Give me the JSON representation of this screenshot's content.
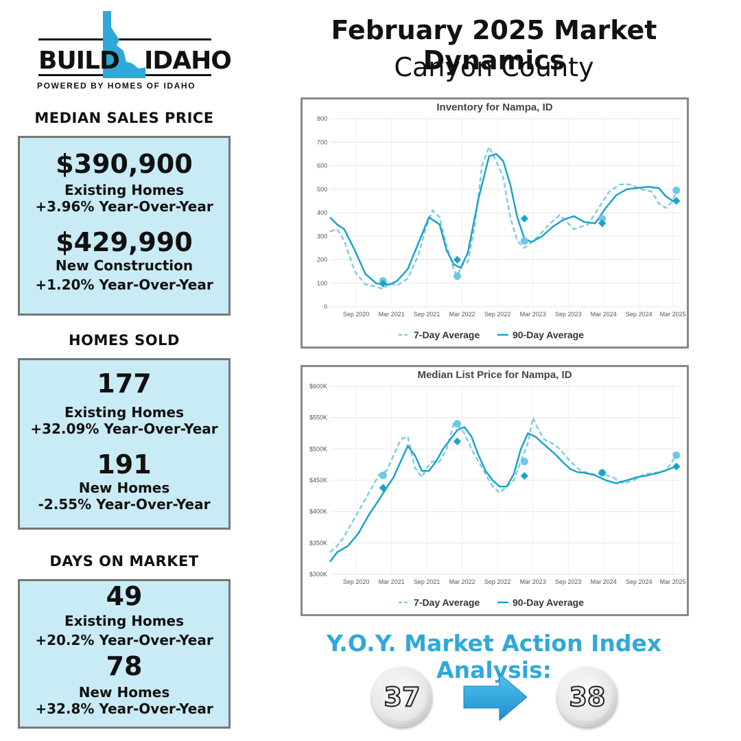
{
  "logo": {
    "left": "BUILD",
    "right": "IDAHO",
    "tagline": "POWERED BY HOMES OF IDAHO"
  },
  "title": "February 2025 Market Dynamics",
  "subtitle": "Canyon County",
  "median_sales_price": {
    "heading": "MEDIAN SALES PRICE",
    "existing_value": "$390,900",
    "existing_label": "Existing Homes",
    "existing_change": "+3.96% Year-Over-Year",
    "new_value": "$429,990",
    "new_label": "New Construction",
    "new_change": "+1.20% Year-Over-Year"
  },
  "homes_sold": {
    "heading": "HOMES SOLD",
    "existing_value": "177",
    "existing_label": "Existing Homes",
    "existing_change": "+32.09% Year-Over-Year",
    "new_value": "191",
    "new_label": "New Homes",
    "new_change": "-2.55% Year-Over-Year"
  },
  "days_on_market": {
    "heading": "DAYS ON MARKET",
    "existing_value": "49",
    "existing_label": "Existing Homes",
    "existing_change": "+20.2% Year-Over-Year",
    "new_value": "78",
    "new_label": "New Homes",
    "new_change": "+32.8% Year-Over-Year"
  },
  "market_action": {
    "title": "Y.O.Y. Market Action Index Analysis:",
    "from": "37",
    "to": "38"
  },
  "colors": {
    "box": "#c9ebf5",
    "accent": "#2fa9d8",
    "line7": "#7fcde3",
    "line90": "#1aa3c8"
  },
  "chart_data": [
    {
      "type": "line",
      "title": "Inventory for Nampa, ID",
      "xticks": [
        "Sep 2020",
        "Mar 2021",
        "Sep 2021",
        "Mar 2022",
        "Sep 2022",
        "Mar 2023",
        "Sep 2023",
        "Mar 2024",
        "Sep 2024",
        "Mar 2025"
      ],
      "ylim": [
        0,
        800
      ],
      "yticks": [
        "0",
        "100",
        "200",
        "300",
        "400",
        "500",
        "600",
        "700",
        "800"
      ],
      "x_range": [
        2020.25,
        2025.2
      ],
      "series": [
        {
          "name": "7-Day Average",
          "x": [
            2020.25,
            2020.35,
            2020.45,
            2020.6,
            2020.75,
            2020.9,
            2021.0,
            2021.1,
            2021.2,
            2021.35,
            2021.5,
            2021.6,
            2021.7,
            2021.8,
            2021.9,
            2022.0,
            2022.05,
            2022.12,
            2022.2,
            2022.3,
            2022.4,
            2022.5,
            2022.6,
            2022.7,
            2022.8,
            2022.9,
            2023.0,
            2023.05,
            2023.12,
            2023.2,
            2023.35,
            2023.5,
            2023.7,
            2023.9,
            2024.05,
            2024.2,
            2024.35,
            2024.5,
            2024.65,
            2024.8,
            2024.9,
            2025.0,
            2025.1,
            2025.15
          ],
          "y": [
            320,
            330,
            280,
            150,
            95,
            85,
            75,
            100,
            90,
            120,
            220,
            330,
            410,
            380,
            260,
            160,
            130,
            180,
            190,
            350,
            600,
            680,
            620,
            550,
            380,
            280,
            250,
            260,
            280,
            300,
            350,
            390,
            330,
            350,
            420,
            490,
            520,
            520,
            500,
            490,
            440,
            420,
            450,
            495
          ]
        },
        {
          "name": "90-Day Average",
          "x": [
            2020.25,
            2020.35,
            2020.45,
            2020.6,
            2020.75,
            2020.9,
            2021.0,
            2021.1,
            2021.2,
            2021.35,
            2021.5,
            2021.65,
            2021.8,
            2021.9,
            2022.0,
            2022.1,
            2022.2,
            2022.35,
            2022.5,
            2022.6,
            2022.7,
            2022.8,
            2022.9,
            2023.0,
            2023.1,
            2023.25,
            2023.4,
            2023.55,
            2023.7,
            2023.85,
            2024.0,
            2024.15,
            2024.3,
            2024.45,
            2024.6,
            2024.75,
            2024.9,
            2025.0,
            2025.1,
            2025.15
          ],
          "y": [
            380,
            350,
            330,
            240,
            140,
            100,
            95,
            95,
            110,
            160,
            270,
            380,
            350,
            240,
            180,
            165,
            230,
            460,
            640,
            650,
            620,
            520,
            380,
            290,
            275,
            300,
            340,
            370,
            385,
            360,
            355,
            420,
            475,
            500,
            505,
            510,
            505,
            470,
            450,
            450
          ]
        }
      ],
      "markers": {
        "7-Day Average": [
          [
            2021.0,
            110
          ],
          [
            2022.05,
            130
          ],
          [
            2023.0,
            280
          ],
          [
            2024.1,
            375
          ],
          [
            2025.15,
            495
          ]
        ],
        "90-Day Average": [
          [
            2021.0,
            98
          ],
          [
            2022.05,
            200
          ],
          [
            2023.0,
            375
          ],
          [
            2024.1,
            355
          ],
          [
            2025.15,
            450
          ]
        ]
      }
    },
    {
      "type": "line",
      "title": "Median List Price for Nampa, ID",
      "xticks": [
        "Sep 2020",
        "Mar 2021",
        "Sep 2021",
        "Mar 2022",
        "Sep 2022",
        "Mar 2023",
        "Sep 2023",
        "Mar 2024",
        "Sep 2024",
        "Mar 2025"
      ],
      "ylim": [
        300,
        600
      ],
      "yticks": [
        "$300K",
        "$350K",
        "$400K",
        "$450K",
        "$500K",
        "$550K",
        "$600K"
      ],
      "x_range": [
        2020.25,
        2025.2
      ],
      "series": [
        {
          "name": "7-Day Average",
          "x": [
            2020.25,
            2020.35,
            2020.45,
            2020.55,
            2020.65,
            2020.75,
            2020.85,
            2020.95,
            2021.05,
            2021.15,
            2021.25,
            2021.35,
            2021.45,
            2021.55,
            2021.62,
            2021.7,
            2021.8,
            2021.9,
            2022.0,
            2022.08,
            2022.15,
            2022.25,
            2022.35,
            2022.45,
            2022.55,
            2022.65,
            2022.75,
            2022.85,
            2022.95,
            2023.05,
            2023.12,
            2023.2,
            2023.28,
            2023.38,
            2023.5,
            2023.65,
            2023.8,
            2023.95,
            2024.1,
            2024.25,
            2024.4,
            2024.55,
            2024.7,
            2024.85,
            2025.0,
            2025.15
          ],
          "y": [
            335,
            345,
            360,
            380,
            400,
            420,
            440,
            460,
            465,
            490,
            515,
            520,
            470,
            455,
            470,
            480,
            480,
            500,
            540,
            535,
            525,
            500,
            480,
            460,
            440,
            430,
            440,
            450,
            480,
            510,
            550,
            530,
            515,
            510,
            500,
            480,
            465,
            460,
            460,
            455,
            445,
            450,
            460,
            462,
            465,
            490
          ]
        },
        {
          "name": "90-Day Average",
          "x": [
            2020.25,
            2020.35,
            2020.5,
            2020.65,
            2020.8,
            2020.95,
            2021.05,
            2021.15,
            2021.25,
            2021.35,
            2021.45,
            2021.55,
            2021.65,
            2021.75,
            2021.85,
            2021.95,
            2022.05,
            2022.15,
            2022.25,
            2022.35,
            2022.45,
            2022.55,
            2022.65,
            2022.75,
            2022.85,
            2022.95,
            2023.05,
            2023.15,
            2023.25,
            2023.35,
            2023.45,
            2023.55,
            2023.65,
            2023.75,
            2023.85,
            2024.0,
            2024.15,
            2024.3,
            2024.45,
            2024.6,
            2024.75,
            2024.9,
            2025.05,
            2025.15
          ],
          "y": [
            320,
            335,
            345,
            365,
            395,
            420,
            438,
            455,
            480,
            505,
            490,
            465,
            465,
            480,
            500,
            515,
            530,
            535,
            520,
            490,
            465,
            450,
            440,
            440,
            460,
            500,
            525,
            520,
            510,
            500,
            490,
            478,
            468,
            463,
            462,
            458,
            450,
            445,
            450,
            455,
            458,
            462,
            468,
            472
          ]
        }
      ],
      "markers": {
        "7-Day Average": [
          [
            2021.0,
            458
          ],
          [
            2022.05,
            540
          ],
          [
            2023.0,
            480
          ],
          [
            2024.1,
            462
          ],
          [
            2025.15,
            490
          ]
        ],
        "90-Day Average": [
          [
            2021.0,
            438
          ],
          [
            2022.05,
            512
          ],
          [
            2023.0,
            457
          ],
          [
            2024.1,
            462
          ],
          [
            2025.15,
            472
          ]
        ]
      }
    }
  ]
}
